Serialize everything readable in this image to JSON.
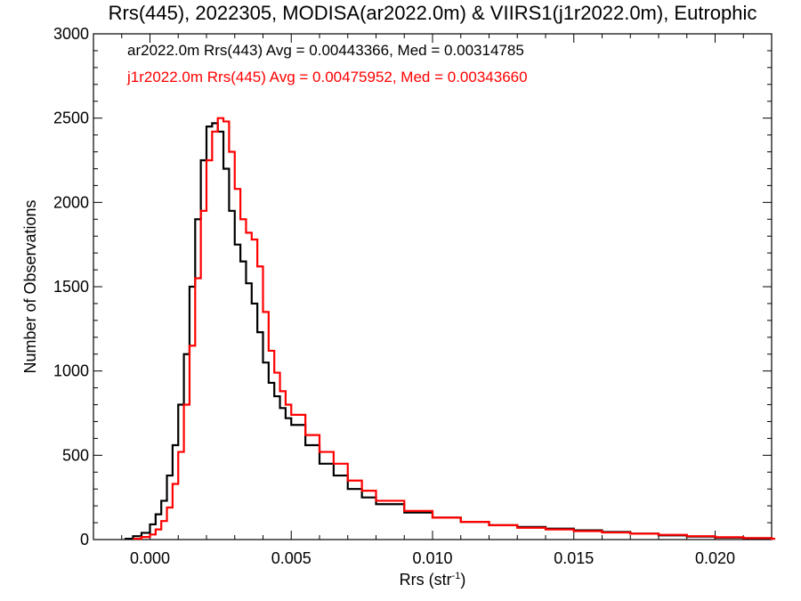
{
  "chart_data": {
    "type": "line",
    "title": "Rrs(445), 2022305, MODISA(ar2022.0m) & VIIRS1(j1r2022.0m), Eutrophic",
    "xlabel": "Rrs (str",
    "xlabel_superscript": "-1",
    "xlabel_close": ")",
    "ylabel": "Number of Observations",
    "xlim": [
      -0.002,
      0.022
    ],
    "ylim": [
      0,
      3000
    ],
    "xticks": [
      0.0,
      0.005,
      0.01,
      0.015,
      0.02
    ],
    "xtick_labels": [
      "0.000",
      "0.005",
      "0.010",
      "0.015",
      "0.020"
    ],
    "yticks": [
      0,
      500,
      1000,
      1500,
      2000,
      2500,
      3000
    ],
    "ytick_labels": [
      "0",
      "500",
      "1000",
      "1500",
      "2000",
      "2500",
      "3000"
    ],
    "legend": [
      "ar2022.0m Rrs(443) Avg = 0.00443366, Med = 0.00314785",
      "j1r2022.0m Rrs(445) Avg = 0.00475952, Med = 0.00343660"
    ],
    "series": [
      {
        "color": "#000000",
        "x": [
          -0.0009,
          -0.0006,
          -0.0003,
          0.0,
          0.0002,
          0.0004,
          0.0006,
          0.0008,
          0.001,
          0.0012,
          0.0014,
          0.0016,
          0.0018,
          0.002,
          0.0022,
          0.0024,
          0.0026,
          0.0028,
          0.003,
          0.0032,
          0.0034,
          0.0036,
          0.0038,
          0.004,
          0.0042,
          0.0044,
          0.0046,
          0.0048,
          0.005,
          0.0055,
          0.006,
          0.0065,
          0.007,
          0.0075,
          0.008,
          0.009,
          0.01,
          0.011,
          0.012,
          0.013,
          0.014,
          0.015,
          0.016,
          0.017,
          0.018,
          0.019,
          0.02,
          0.021,
          0.022
        ],
        "y": [
          5,
          20,
          40,
          90,
          150,
          230,
          380,
          560,
          800,
          1100,
          1500,
          1900,
          2250,
          2450,
          2470,
          2420,
          2200,
          1950,
          1750,
          1650,
          1520,
          1400,
          1230,
          1050,
          930,
          850,
          780,
          720,
          680,
          560,
          450,
          380,
          300,
          250,
          210,
          160,
          130,
          105,
          85,
          75,
          65,
          55,
          45,
          35,
          25,
          18,
          12,
          8,
          5
        ]
      },
      {
        "color": "#ff0000",
        "x": [
          -0.0006,
          -0.0003,
          0.0,
          0.0002,
          0.0004,
          0.0006,
          0.0008,
          0.001,
          0.0012,
          0.0014,
          0.0016,
          0.0018,
          0.002,
          0.0022,
          0.0024,
          0.0026,
          0.0028,
          0.003,
          0.0032,
          0.0034,
          0.0036,
          0.0038,
          0.004,
          0.0042,
          0.0044,
          0.0046,
          0.0048,
          0.005,
          0.0055,
          0.006,
          0.0065,
          0.007,
          0.0075,
          0.008,
          0.009,
          0.01,
          0.011,
          0.012,
          0.013,
          0.014,
          0.015,
          0.016,
          0.017,
          0.018,
          0.019,
          0.02,
          0.021,
          0.022
        ],
        "y": [
          5,
          15,
          30,
          60,
          110,
          190,
          330,
          520,
          800,
          1150,
          1550,
          1950,
          2250,
          2420,
          2500,
          2480,
          2300,
          2080,
          1900,
          1820,
          1780,
          1620,
          1350,
          1120,
          990,
          880,
          800,
          740,
          620,
          520,
          450,
          350,
          290,
          230,
          170,
          130,
          105,
          85,
          70,
          60,
          50,
          42,
          35,
          28,
          20,
          14,
          9,
          5
        ]
      }
    ]
  }
}
